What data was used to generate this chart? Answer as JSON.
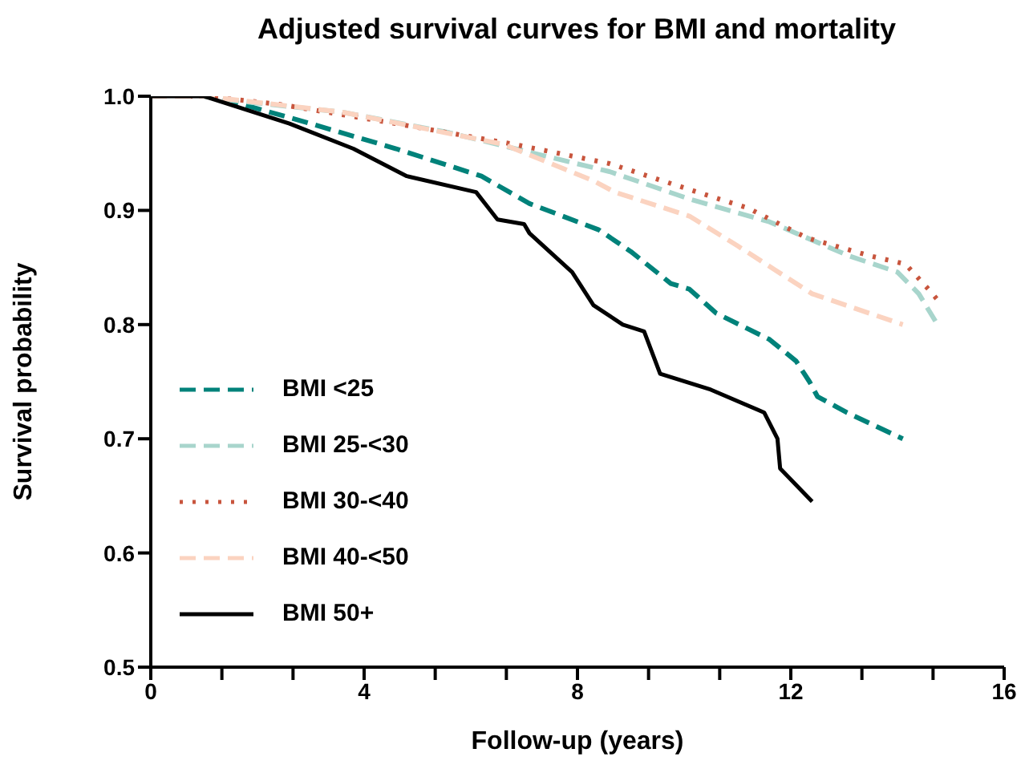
{
  "chart_data": {
    "type": "line",
    "title": "Adjusted survival curves for BMI and mortality",
    "xlabel": "Follow-up (years)",
    "ylabel": "Survival probability",
    "xlim": [
      0,
      16
    ],
    "xticks": [
      0,
      {
        "value": 1.333,
        "label": null
      },
      {
        "value": 2.667,
        "label": null
      },
      4,
      {
        "value": 5.333,
        "label": null
      },
      {
        "value": 6.667,
        "label": null
      },
      8,
      {
        "value": 9.333,
        "label": null
      },
      {
        "value": 10.667,
        "label": null
      },
      12,
      {
        "value": 13.333,
        "label": null
      },
      {
        "value": 14.667,
        "label": null
      },
      16
    ],
    "ylim": [
      0.5,
      1.0
    ],
    "yticks": [
      {
        "value": 0.5,
        "label": "0.5"
      },
      {
        "value": 0.6,
        "label": "0.6"
      },
      {
        "value": 0.7,
        "label": "0.7"
      },
      {
        "value": 0.8,
        "label": "0.8"
      },
      {
        "value": 0.9,
        "label": "0.9"
      },
      {
        "value": 1.0,
        "label": "1.0"
      }
    ],
    "grid": false,
    "legend": "left",
    "marker": "none",
    "series": [
      {
        "name": "BMI <25",
        "color": "#00827a",
        "line_style": "dashed",
        "x": [
          0,
          1.0,
          1.4,
          3.0,
          4.6,
          6.2,
          7.1,
          8.4,
          9.0,
          9.75,
          10.1,
          10.6,
          11.6,
          12.1,
          12.35,
          12.5,
          13.05,
          14.1
        ],
        "values": [
          1.0,
          1.0,
          0.997,
          0.976,
          0.954,
          0.93,
          0.906,
          0.883,
          0.864,
          0.836,
          0.831,
          0.81,
          0.787,
          0.768,
          0.75,
          0.737,
          0.723,
          0.7
        ]
      },
      {
        "name": "BMI 25-<30",
        "color": "#a8d5cc",
        "line_style": "dashed",
        "x": [
          0,
          1.0,
          1.4,
          3.6,
          5.6,
          8.6,
          10.1,
          11.6,
          13.1,
          14.0,
          14.4,
          14.75
        ],
        "values": [
          1.0,
          1.0,
          0.997,
          0.986,
          0.968,
          0.934,
          0.91,
          0.89,
          0.86,
          0.846,
          0.827,
          0.8
        ]
      },
      {
        "name": "BMI 30-<40",
        "color": "#c8553d",
        "line_style": "dotted",
        "x": [
          0,
          1.0,
          2.4,
          4.6,
          6.8,
          8.6,
          10.25,
          11.2,
          12.3,
          13.5,
          14.15,
          14.6,
          14.8
        ],
        "values": [
          1.0,
          1.0,
          0.993,
          0.976,
          0.958,
          0.941,
          0.916,
          0.902,
          0.876,
          0.86,
          0.853,
          0.83,
          0.819
        ]
      },
      {
        "name": "BMI 40-<50",
        "color": "#fbd3c0",
        "line_style": "dashed",
        "x": [
          0,
          1.0,
          3.6,
          6.6,
          8.3,
          8.7,
          10.1,
          11.0,
          11.7,
          12.4,
          14.1
        ],
        "values": [
          1.0,
          1.0,
          0.986,
          0.958,
          0.926,
          0.916,
          0.895,
          0.869,
          0.848,
          0.827,
          0.8
        ]
      },
      {
        "name": "BMI 50+",
        "color": "#000000",
        "line_style": "solid",
        "x": [
          0,
          1.0,
          2.6,
          3.8,
          4.8,
          6.1,
          6.5,
          7.0,
          7.1,
          7.9,
          8.3,
          8.85,
          9.25,
          9.55,
          10.5,
          11.5,
          11.75,
          11.8,
          12.4
        ],
        "values": [
          1.0,
          1.0,
          0.976,
          0.954,
          0.93,
          0.916,
          0.892,
          0.888,
          0.88,
          0.846,
          0.817,
          0.8,
          0.794,
          0.757,
          0.743,
          0.723,
          0.7,
          0.674,
          0.645
        ]
      }
    ]
  }
}
